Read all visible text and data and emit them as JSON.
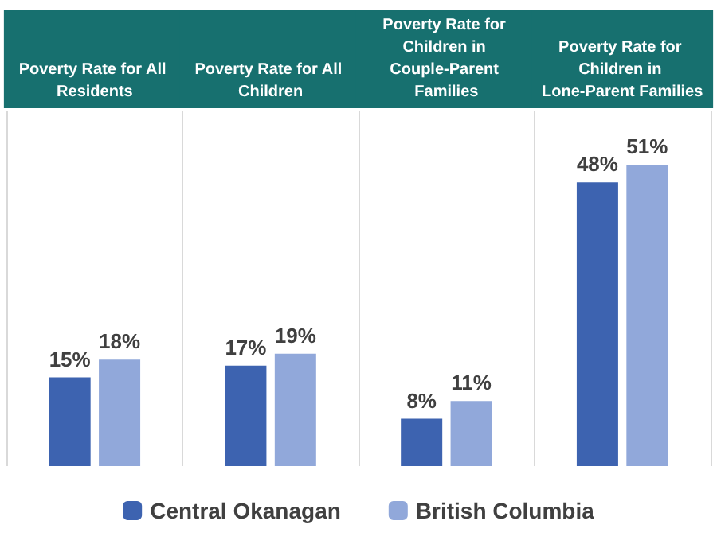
{
  "chart_data": {
    "type": "bar",
    "categories": [
      "Poverty Rate for All Residents",
      "Poverty Rate for All Children",
      "Poverty Rate for Children in Couple-Parent Families",
      "Poverty Rate for Children in Lone-Parent Families"
    ],
    "series": [
      {
        "name": "Central Okanagan",
        "color": "#3d63b0",
        "values": [
          15,
          17,
          8,
          48
        ],
        "value_labels": [
          "15%",
          "17%",
          "8%",
          "48%"
        ]
      },
      {
        "name": "British Columbia",
        "color": "#91a8da",
        "values": [
          18,
          19,
          11,
          51
        ],
        "value_labels": [
          "18%",
          "19%",
          "11%",
          "51%"
        ]
      }
    ],
    "legend": "bottom",
    "grid": "x"
  }
}
